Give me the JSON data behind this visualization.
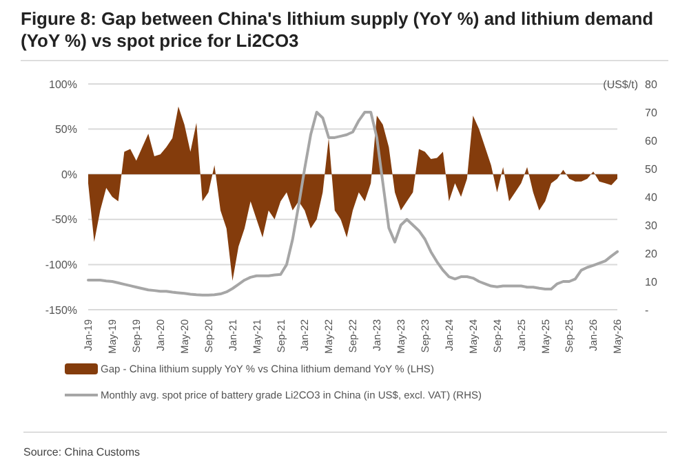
{
  "chart_data": {
    "type": "area",
    "title": "Figure 8: Gap between China's lithium supply (YoY %) and lithium demand (YoY %) vs spot price for Li2CO3",
    "categories": [
      "Jan-19",
      null,
      null,
      null,
      "May-19",
      null,
      null,
      null,
      "Sep-19",
      null,
      null,
      null,
      "Jan-20",
      null,
      null,
      null,
      "May-20",
      null,
      null,
      null,
      "Sep-20",
      null,
      null,
      null,
      "Jan-21",
      null,
      null,
      null,
      "May-21",
      null,
      null,
      null,
      "Sep-21",
      null,
      null,
      null,
      "Jan-22",
      null,
      null,
      null,
      "May-22",
      null,
      null,
      null,
      "Sep-22",
      null,
      null,
      null,
      "Jan-23",
      null,
      null,
      null,
      "May-23",
      null,
      null,
      null,
      "Sep-23",
      null,
      null,
      null,
      "Jan-24",
      null,
      null,
      null,
      "May-24",
      null,
      null,
      null,
      "Sep-24",
      null,
      null,
      null,
      "Jan-25",
      null,
      null,
      null,
      "May-25",
      null,
      null,
      null,
      "Sep-25",
      null,
      null,
      null,
      "Jan-26",
      null,
      null,
      null,
      "May-26"
    ],
    "series": [
      {
        "name": "Gap - China lithium supply YoY % vs China lithium demand YoY % (LHS)",
        "color": "#843c0c",
        "values": [
          -10,
          -75,
          -40,
          -15,
          -25,
          -30,
          25,
          28,
          15,
          30,
          45,
          20,
          22,
          30,
          40,
          75,
          55,
          25,
          57,
          -30,
          -20,
          10,
          -40,
          -60,
          -118,
          -80,
          -60,
          -30,
          -50,
          -70,
          -40,
          -50,
          -30,
          -20,
          -40,
          -30,
          -40,
          -60,
          -50,
          -20,
          40,
          -40,
          -50,
          -70,
          -40,
          -20,
          -30,
          -10,
          65,
          55,
          30,
          -20,
          -40,
          -30,
          -20,
          28,
          25,
          17,
          18,
          25,
          -30,
          -10,
          -25,
          -5,
          65,
          50,
          30,
          10,
          -20,
          8,
          -30,
          -20,
          -10,
          8,
          -20,
          -40,
          -30,
          -10,
          -5,
          5,
          -5,
          -8,
          -8,
          -5,
          3,
          -8,
          -10,
          -12,
          -5
        ]
      },
      {
        "name": "Monthly avg. spot price of battery grade Li2CO3 in China (in US$, excl. VAT) (RHS)",
        "type": "line",
        "axis": "y2",
        "color": "#a6a6a6",
        "values": [
          10.5,
          10.5,
          10.5,
          10.2,
          10,
          9.5,
          9,
          8.5,
          8,
          7.5,
          7,
          6.8,
          6.5,
          6.5,
          6.2,
          6,
          5.8,
          5.5,
          5.3,
          5.2,
          5.2,
          5.3,
          5.6,
          6.3,
          7.5,
          9,
          10.5,
          11.5,
          12,
          12,
          12,
          12.3,
          12.5,
          16,
          25,
          37,
          50,
          62,
          70,
          68,
          61,
          61,
          61.5,
          62,
          63,
          67,
          70,
          70,
          61,
          45,
          29,
          24,
          30,
          32,
          30,
          28,
          25,
          20.5,
          17,
          14,
          11.7,
          10.9,
          11.7,
          11.7,
          11.2,
          10,
          9.2,
          8.4,
          8.1,
          8.4,
          8.4,
          8.4,
          8.4,
          8,
          8,
          7.6,
          7.3,
          7.3,
          9.2,
          10,
          10,
          10.9,
          14,
          15,
          15.7,
          16.5,
          17.3,
          19,
          20.6
        ]
      }
    ],
    "ylim": [
      -150,
      100
    ],
    "yticks": [
      {
        "value": -150,
        "label": "-150%"
      },
      {
        "value": -100,
        "label": "-100%"
      },
      {
        "value": -50,
        "label": "-50%"
      },
      {
        "value": 0,
        "label": "0%"
      },
      {
        "value": 50,
        "label": "50%"
      },
      {
        "value": 100,
        "label": "100%"
      }
    ],
    "y2lim": [
      0,
      80
    ],
    "y2ticks": [
      {
        "value": 0,
        "label": "-"
      },
      10,
      20,
      30,
      40,
      50,
      60,
      70,
      80
    ],
    "y2label": "(US$/t)",
    "grid": "y",
    "legend": "bottom",
    "annotations": [
      "Source: China Customs"
    ]
  }
}
